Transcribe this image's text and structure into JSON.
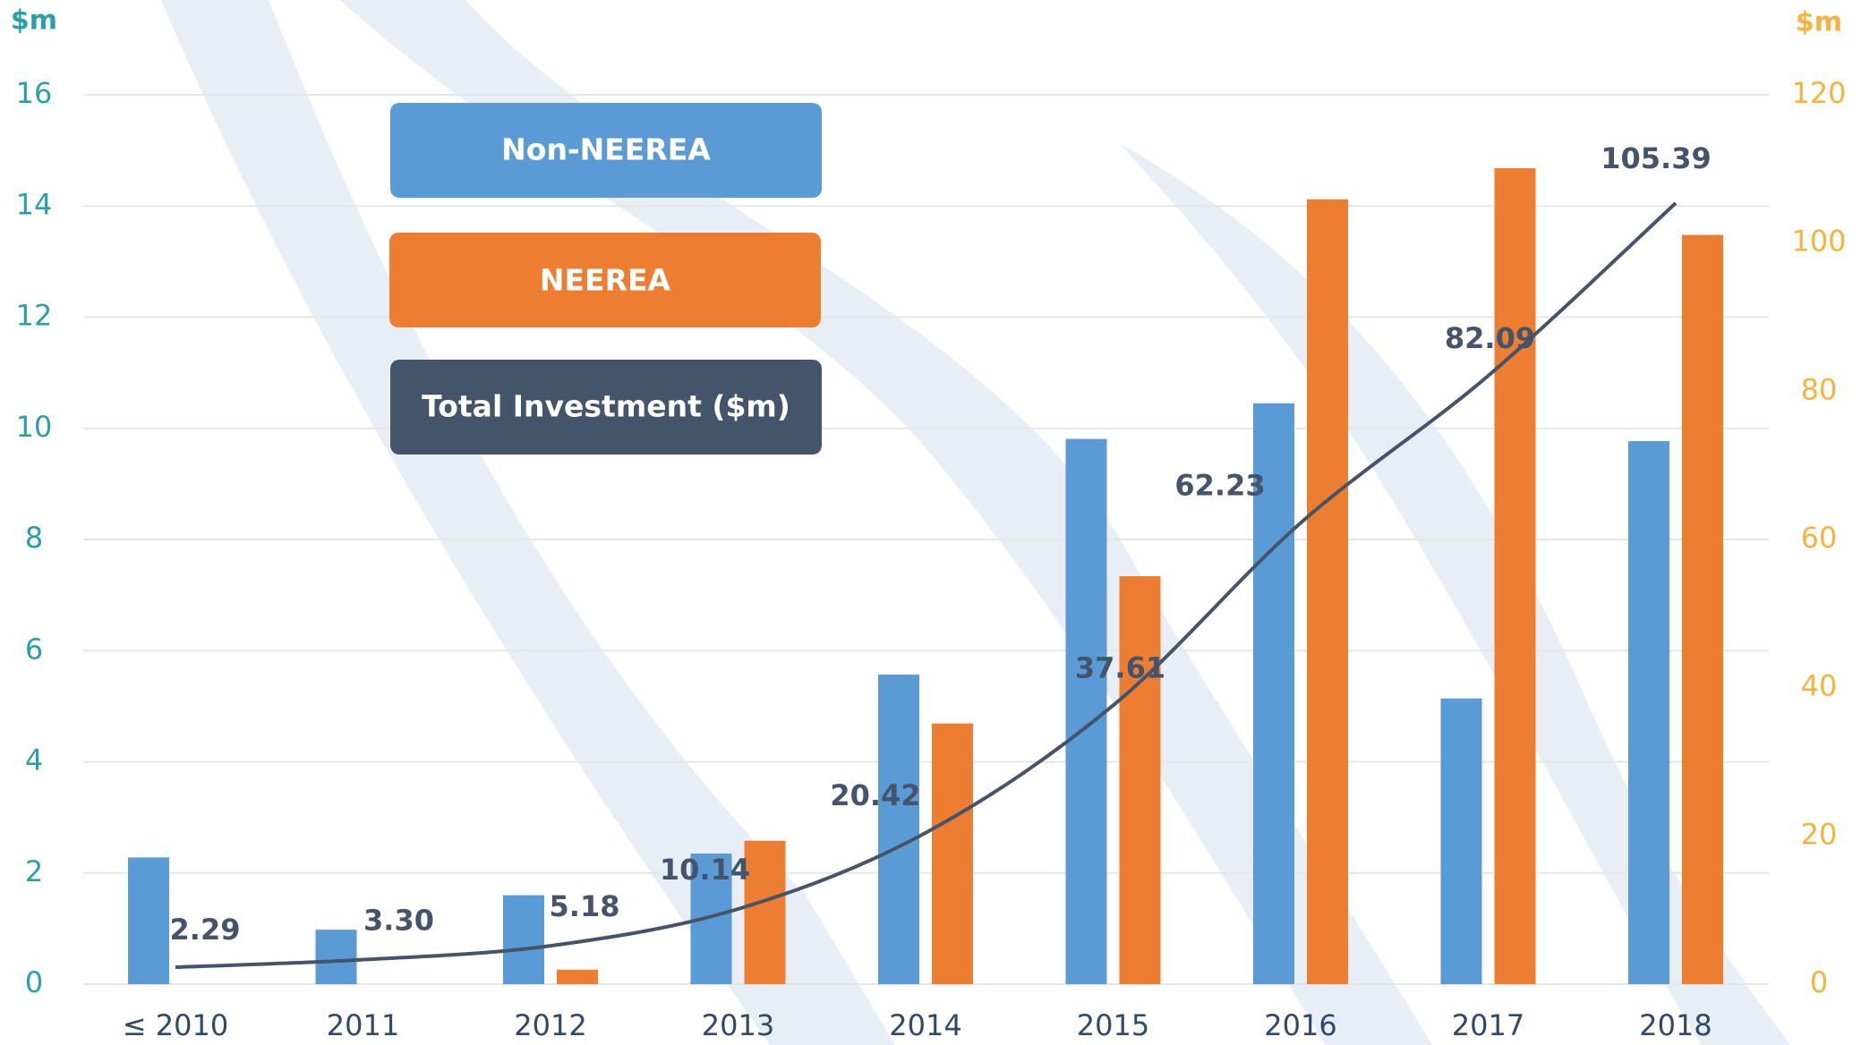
{
  "chart_data": {
    "type": "bar-line",
    "y_label": "$m",
    "y2_label": "$m",
    "categories": [
      "≤ 2010",
      "2011",
      "2012",
      "2013",
      "2014",
      "2015",
      "2016",
      "2017",
      "2018"
    ],
    "series": [
      {
        "name": "Non-NEEREA",
        "color": "#5b9bd5",
        "type": "bar",
        "values": [
          2.28,
          0.98,
          1.6,
          2.35,
          5.57,
          9.81,
          10.45,
          5.14,
          9.77
        ]
      },
      {
        "name": "NEEREA",
        "color": "#ed7d31",
        "type": "bar",
        "values": [
          0,
          0,
          0.26,
          2.58,
          4.69,
          7.34,
          14.12,
          14.68,
          13.48
        ]
      },
      {
        "name": "Total Investment ($m)",
        "color": "#44546a",
        "type": "line",
        "axis": "y2",
        "values": [
          2.29,
          3.3,
          5.18,
          10.14,
          20.42,
          37.61,
          62.23,
          82.09,
          105.39
        ],
        "value_labels": [
          "2.29",
          "3.30",
          "5.18",
          "10.14",
          "20.42",
          "37.61",
          "62.23",
          "82.09",
          "105.39"
        ]
      }
    ],
    "ylim": [
      0,
      16
    ],
    "yticks": [
      0,
      2,
      4,
      6,
      8,
      10,
      12,
      14,
      16
    ],
    "y2lim": [
      0,
      120
    ],
    "y2ticks": [
      0,
      20,
      40,
      60,
      80,
      100,
      120
    ],
    "grid": true
  }
}
